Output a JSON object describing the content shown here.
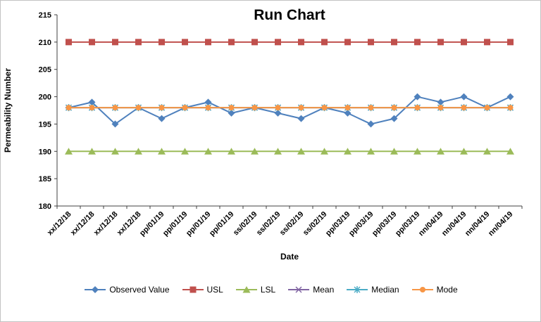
{
  "chart_data": {
    "type": "line",
    "title": "Run Chart",
    "xlabel": "Date",
    "ylabel": "Permeability Number",
    "ylim": [
      180,
      215
    ],
    "ytick_step": 5,
    "grid": false,
    "legend_position": "bottom",
    "categories": [
      "xx/12/18",
      "xx/12/18",
      "xx/12/18",
      "xx/12/18",
      "pp/01/19",
      "pp/01/19",
      "pp/01/19",
      "pp/01/19",
      "ss/02/19",
      "ss/02/19",
      "ss/02/19",
      "ss/02/19",
      "pp/03/19",
      "pp/03/19",
      "pp/03/19",
      "pp/03/19",
      "nn/04/19",
      "nn/04/19",
      "nn/04/19",
      "nn/04/19"
    ],
    "series": [
      {
        "name": "Observed Value",
        "color": "#4F81BD",
        "marker": "diamond",
        "values": [
          198,
          199,
          195,
          198,
          196,
          198,
          199,
          197,
          198,
          197,
          196,
          198,
          197,
          195,
          196,
          200,
          199,
          200,
          198,
          200
        ]
      },
      {
        "name": "USL",
        "color": "#C0504D",
        "marker": "square",
        "constant": 210
      },
      {
        "name": "LSL",
        "color": "#9BBB59",
        "marker": "triangle",
        "constant": 190
      },
      {
        "name": "Mean",
        "color": "#8064A2",
        "marker": "x",
        "constant": 198
      },
      {
        "name": "Median",
        "color": "#4BACC6",
        "marker": "star",
        "constant": 198
      },
      {
        "name": "Mode",
        "color": "#F79646",
        "marker": "circle",
        "constant": 198
      }
    ]
  }
}
